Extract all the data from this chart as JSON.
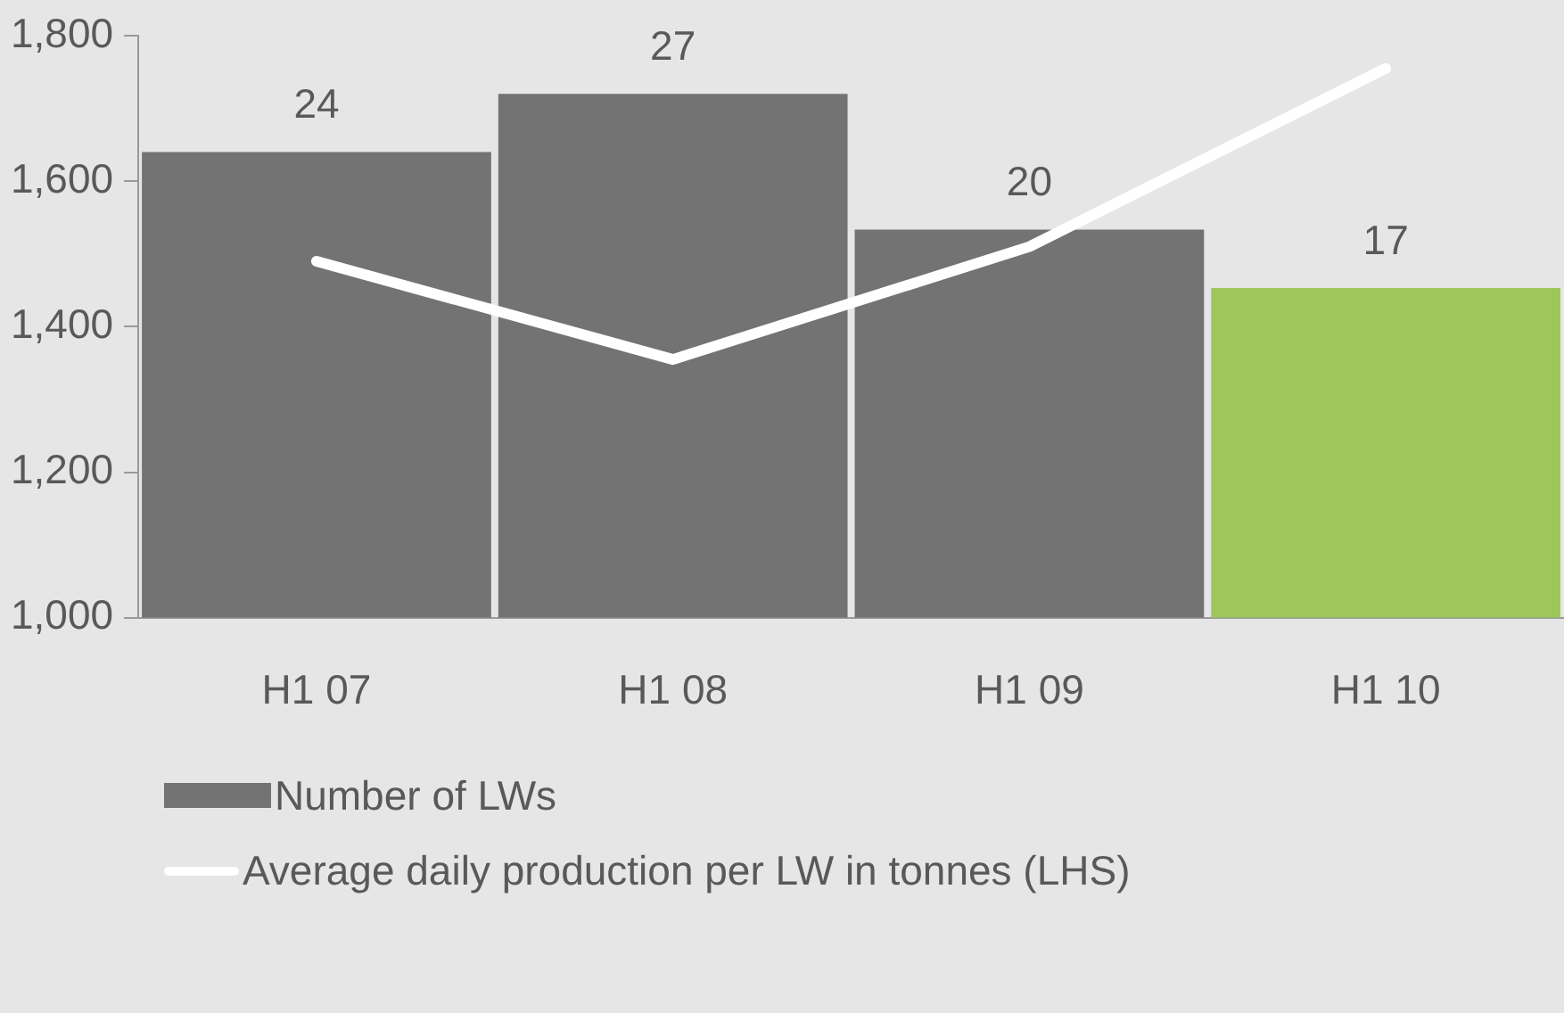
{
  "chart_data": {
    "type": "bar",
    "categories": [
      "H1 07",
      "H1 08",
      "H1 09",
      "H1 10"
    ],
    "series": [
      {
        "name": "Number of LWs",
        "axis": "y2",
        "color": "#737373",
        "colors": [
          "#737373",
          "#737373",
          "#737373",
          "#9dc75b"
        ],
        "values": [
          24,
          27,
          20,
          17
        ],
        "value_labels": [
          "24",
          "27",
          "20",
          "17"
        ]
      },
      {
        "name": "Average daily production per LW in tonnes (LHS)",
        "type": "line",
        "axis": "y",
        "color": "#ffffff",
        "values": [
          1490,
          1355,
          1510,
          1755
        ]
      }
    ],
    "ylim": [
      1000,
      1800
    ],
    "yticks": [
      {
        "value": 1000,
        "label": "1,000"
      },
      {
        "value": 1200,
        "label": "1,200"
      },
      {
        "value": 1400,
        "label": "1,400"
      },
      {
        "value": 1600,
        "label": "1,600"
      },
      {
        "value": 1800,
        "label": "1,800"
      }
    ],
    "y2lim": [
      0,
      30
    ],
    "tick_labels": "xy",
    "grid": false,
    "legend": "bottom left",
    "marker": "none"
  }
}
